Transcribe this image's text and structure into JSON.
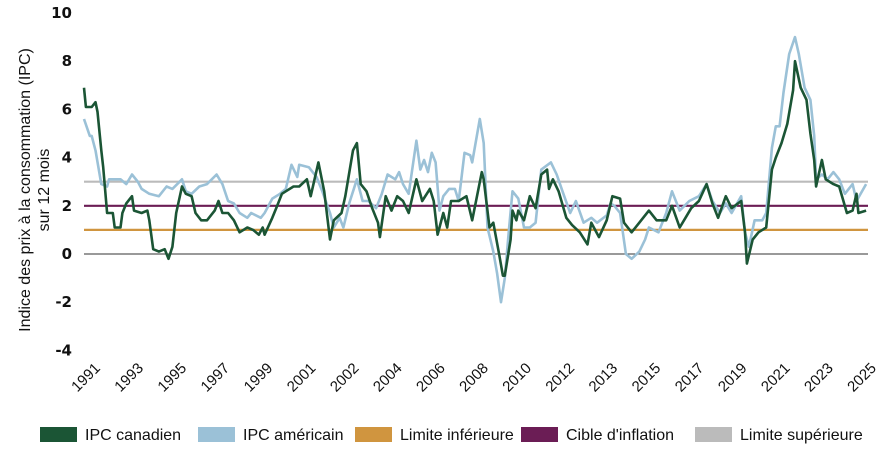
{
  "chart_data": {
    "type": "line",
    "title": "",
    "ylabel_lines": [
      "Indice des prix à la consommation (IPC)",
      "sur 12 mois"
    ],
    "xlabel": "",
    "ylim": [
      -4,
      10
    ],
    "yticks": [
      "10",
      "8",
      "6",
      "4",
      "2",
      "0",
      "-2",
      "-4"
    ],
    "ytick_values": [
      10,
      8,
      6,
      4,
      2,
      0,
      -2,
      -4
    ],
    "xlim": [
      "1991-01",
      "2025-01"
    ],
    "xtick_labels": [
      "1991",
      "1993",
      "1995",
      "1997",
      "1999",
      "2001",
      "2002",
      "2004",
      "2006",
      "2008",
      "2010",
      "2012",
      "2013",
      "2015",
      "2017",
      "2019",
      "2021",
      "2023",
      "2025"
    ],
    "grid": false,
    "legend_position": "bottom",
    "reference_lines": [
      {
        "name": "Limite inférieure",
        "value": 1,
        "color": "#d0953f"
      },
      {
        "name": "Cible d'inflation",
        "value": 2,
        "color": "#6b1d55"
      },
      {
        "name": "Limite supérieure",
        "value": 3,
        "color": "#bbbbbb"
      }
    ],
    "zero_line_color": "#333333",
    "series": [
      {
        "name": "IPC canadien",
        "color": "#1b5535",
        "points": [
          [
            "1991-01",
            6.9
          ],
          [
            "1991-02",
            6.1
          ],
          [
            "1991-05",
            6.1
          ],
          [
            "1991-07",
            6.3
          ],
          [
            "1991-08",
            5.9
          ],
          [
            "1991-10",
            4.3
          ],
          [
            "1991-11",
            3.6
          ],
          [
            "1992-01",
            1.7
          ],
          [
            "1992-04",
            1.7
          ],
          [
            "1992-05",
            1.1
          ],
          [
            "1992-08",
            1.1
          ],
          [
            "1992-09",
            1.7
          ],
          [
            "1992-11",
            2.1
          ],
          [
            "1993-02",
            2.4
          ],
          [
            "1993-03",
            1.8
          ],
          [
            "1993-07",
            1.7
          ],
          [
            "1993-10",
            1.8
          ],
          [
            "1993-11",
            1.4
          ],
          [
            "1994-01",
            0.2
          ],
          [
            "1994-04",
            0.1
          ],
          [
            "1994-07",
            0.2
          ],
          [
            "1994-09",
            -0.2
          ],
          [
            "1994-11",
            0.3
          ],
          [
            "1995-01",
            1.7
          ],
          [
            "1995-04",
            2.8
          ],
          [
            "1995-06",
            2.5
          ],
          [
            "1995-09",
            2.4
          ],
          [
            "1995-11",
            1.7
          ],
          [
            "1996-02",
            1.4
          ],
          [
            "1996-05",
            1.4
          ],
          [
            "1996-09",
            1.8
          ],
          [
            "1996-11",
            2.2
          ],
          [
            "1997-01",
            1.7
          ],
          [
            "1997-04",
            1.7
          ],
          [
            "1997-07",
            1.4
          ],
          [
            "1997-10",
            0.9
          ],
          [
            "1998-02",
            1.1
          ],
          [
            "1998-05",
            1.0
          ],
          [
            "1998-08",
            0.8
          ],
          [
            "1998-10",
            1.1
          ],
          [
            "1998-11",
            0.8
          ],
          [
            "1999-03",
            1.5
          ],
          [
            "1999-05",
            1.9
          ],
          [
            "1999-08",
            2.5
          ],
          [
            "1999-10",
            2.6
          ],
          [
            "2000-02",
            2.8
          ],
          [
            "2000-05",
            2.8
          ],
          [
            "2000-09",
            3.1
          ],
          [
            "2000-11",
            2.4
          ],
          [
            "2001-03",
            3.8
          ],
          [
            "2001-06",
            2.6
          ],
          [
            "2001-09",
            0.6
          ],
          [
            "2001-11",
            1.4
          ],
          [
            "2002-03",
            1.7
          ],
          [
            "2002-05",
            2.4
          ],
          [
            "2002-09",
            4.3
          ],
          [
            "2002-11",
            4.6
          ],
          [
            "2003-01",
            2.9
          ],
          [
            "2003-04",
            2.6
          ],
          [
            "2003-07",
            1.9
          ],
          [
            "2003-10",
            1.3
          ],
          [
            "2003-11",
            0.7
          ],
          [
            "2004-02",
            2.4
          ],
          [
            "2004-05",
            1.8
          ],
          [
            "2004-08",
            2.4
          ],
          [
            "2004-11",
            2.2
          ],
          [
            "2005-02",
            1.7
          ],
          [
            "2005-06",
            3.1
          ],
          [
            "2005-09",
            2.2
          ],
          [
            "2006-01",
            2.7
          ],
          [
            "2006-03",
            2.2
          ],
          [
            "2006-05",
            0.8
          ],
          [
            "2006-08",
            1.7
          ],
          [
            "2006-10",
            1.1
          ],
          [
            "2006-12",
            2.2
          ],
          [
            "2007-04",
            2.2
          ],
          [
            "2007-08",
            2.4
          ],
          [
            "2007-11",
            1.4
          ],
          [
            "2008-04",
            3.4
          ],
          [
            "2008-05",
            3.1
          ],
          [
            "2008-08",
            1.1
          ],
          [
            "2008-10",
            1.3
          ],
          [
            "2009-01",
            0.0
          ],
          [
            "2009-03",
            -0.9
          ],
          [
            "2009-04",
            -0.9
          ],
          [
            "2009-07",
            0.6
          ],
          [
            "2009-08",
            1.8
          ],
          [
            "2009-10",
            1.4
          ],
          [
            "2009-11",
            1.8
          ],
          [
            "2010-02",
            1.4
          ],
          [
            "2010-05",
            2.4
          ],
          [
            "2010-08",
            1.9
          ],
          [
            "2010-11",
            3.3
          ],
          [
            "2011-02",
            3.5
          ],
          [
            "2011-03",
            2.7
          ],
          [
            "2011-05",
            3.1
          ],
          [
            "2011-08",
            2.6
          ],
          [
            "2011-12",
            1.5
          ],
          [
            "2012-03",
            1.2
          ],
          [
            "2012-07",
            0.9
          ],
          [
            "2012-11",
            0.4
          ],
          [
            "2013-01",
            1.3
          ],
          [
            "2013-05",
            0.7
          ],
          [
            "2013-09",
            1.4
          ],
          [
            "2013-12",
            2.4
          ],
          [
            "2014-04",
            2.3
          ],
          [
            "2014-06",
            1.3
          ],
          [
            "2014-10",
            0.9
          ],
          [
            "2015-02",
            1.3
          ],
          [
            "2015-07",
            1.8
          ],
          [
            "2015-11",
            1.4
          ],
          [
            "2016-04",
            1.4
          ],
          [
            "2016-07",
            2.0
          ],
          [
            "2016-11",
            1.1
          ],
          [
            "2017-02",
            1.5
          ],
          [
            "2017-05",
            1.9
          ],
          [
            "2017-09",
            2.2
          ],
          [
            "2018-01",
            2.9
          ],
          [
            "2018-04",
            2.1
          ],
          [
            "2018-07",
            1.5
          ],
          [
            "2018-11",
            2.4
          ],
          [
            "2019-02",
            1.9
          ],
          [
            "2019-07",
            2.2
          ],
          [
            "2019-09",
            0.9
          ],
          [
            "2019-10",
            -0.4
          ],
          [
            "2020-01",
            0.6
          ],
          [
            "2020-04",
            0.9
          ],
          [
            "2020-08",
            1.1
          ],
          [
            "2020-11",
            3.5
          ],
          [
            "2021-01",
            4.0
          ],
          [
            "2021-04",
            4.6
          ],
          [
            "2021-07",
            5.4
          ],
          [
            "2021-10",
            6.8
          ],
          [
            "2021-11",
            8.0
          ],
          [
            "2022-02",
            6.9
          ],
          [
            "2022-05",
            6.4
          ],
          [
            "2022-07",
            5.0
          ],
          [
            "2022-09",
            3.9
          ],
          [
            "2022-10",
            2.8
          ],
          [
            "2023-01",
            3.9
          ],
          [
            "2023-03",
            3.1
          ],
          [
            "2023-07",
            2.9
          ],
          [
            "2023-10",
            2.8
          ],
          [
            "2024-02",
            1.7
          ],
          [
            "2024-05",
            1.8
          ],
          [
            "2024-07",
            2.5
          ],
          [
            "2024-08",
            1.7
          ],
          [
            "2024-12",
            1.8
          ]
        ]
      },
      {
        "name": "IPC américain",
        "color": "#9bc1d7",
        "points": [
          [
            "1991-01",
            5.6
          ],
          [
            "1991-04",
            4.9
          ],
          [
            "1991-05",
            4.9
          ],
          [
            "1991-07",
            4.3
          ],
          [
            "1991-10",
            2.9
          ],
          [
            "1992-01",
            2.8
          ],
          [
            "1992-02",
            3.1
          ],
          [
            "1992-08",
            3.1
          ],
          [
            "1992-11",
            2.9
          ],
          [
            "1993-02",
            3.3
          ],
          [
            "1993-05",
            3.0
          ],
          [
            "1993-07",
            2.7
          ],
          [
            "1993-11",
            2.5
          ],
          [
            "1994-04",
            2.4
          ],
          [
            "1994-08",
            2.8
          ],
          [
            "1994-11",
            2.7
          ],
          [
            "1995-04",
            3.1
          ],
          [
            "1995-06",
            2.6
          ],
          [
            "1995-09",
            2.5
          ],
          [
            "1996-01",
            2.8
          ],
          [
            "1996-05",
            2.9
          ],
          [
            "1996-10",
            3.3
          ],
          [
            "1997-01",
            2.9
          ],
          [
            "1997-04",
            2.2
          ],
          [
            "1997-07",
            2.1
          ],
          [
            "1997-10",
            1.7
          ],
          [
            "1998-02",
            1.5
          ],
          [
            "1998-04",
            1.7
          ],
          [
            "1998-09",
            1.5
          ],
          [
            "1998-11",
            1.7
          ],
          [
            "1999-03",
            2.3
          ],
          [
            "1999-07",
            2.5
          ],
          [
            "1999-10",
            2.7
          ],
          [
            "2000-01",
            3.7
          ],
          [
            "2000-04",
            3.2
          ],
          [
            "2000-05",
            3.7
          ],
          [
            "2000-10",
            3.6
          ],
          [
            "2001-02",
            3.2
          ],
          [
            "2001-05",
            2.6
          ],
          [
            "2001-09",
            1.7
          ],
          [
            "2001-11",
            1.1
          ],
          [
            "2002-02",
            1.5
          ],
          [
            "2002-04",
            1.1
          ],
          [
            "2002-07",
            2.1
          ],
          [
            "2002-11",
            3.1
          ],
          [
            "2003-02",
            2.2
          ],
          [
            "2003-05",
            2.2
          ],
          [
            "2003-09",
            1.9
          ],
          [
            "2003-12",
            2.5
          ],
          [
            "2004-03",
            3.3
          ],
          [
            "2004-07",
            3.1
          ],
          [
            "2004-09",
            3.4
          ],
          [
            "2004-11",
            2.9
          ],
          [
            "2005-02",
            2.5
          ],
          [
            "2005-06",
            4.7
          ],
          [
            "2005-08",
            3.5
          ],
          [
            "2005-10",
            3.9
          ],
          [
            "2005-12",
            3.4
          ],
          [
            "2006-02",
            4.2
          ],
          [
            "2006-04",
            3.8
          ],
          [
            "2006-06",
            1.8
          ],
          [
            "2006-08",
            2.4
          ],
          [
            "2006-11",
            2.7
          ],
          [
            "2007-02",
            2.7
          ],
          [
            "2007-04",
            2.2
          ],
          [
            "2007-07",
            4.2
          ],
          [
            "2007-10",
            4.1
          ],
          [
            "2007-11",
            3.8
          ],
          [
            "2008-03",
            5.6
          ],
          [
            "2008-05",
            4.6
          ],
          [
            "2008-07",
            1.1
          ],
          [
            "2008-10",
            0.1
          ],
          [
            "2008-12",
            -0.8
          ],
          [
            "2009-02",
            -2.0
          ],
          [
            "2009-04",
            -1.0
          ],
          [
            "2009-06",
            0.9
          ],
          [
            "2009-08",
            2.6
          ],
          [
            "2009-11",
            2.3
          ],
          [
            "2010-02",
            1.1
          ],
          [
            "2010-05",
            1.1
          ],
          [
            "2010-08",
            1.3
          ],
          [
            "2010-11",
            3.5
          ],
          [
            "2011-04",
            3.8
          ],
          [
            "2011-07",
            3.3
          ],
          [
            "2011-10",
            2.6
          ],
          [
            "2012-02",
            1.7
          ],
          [
            "2012-05",
            2.2
          ],
          [
            "2012-09",
            1.3
          ],
          [
            "2013-01",
            1.5
          ],
          [
            "2013-04",
            1.3
          ],
          [
            "2013-09",
            1.6
          ],
          [
            "2013-11",
            2.1
          ],
          [
            "2014-01",
            2.0
          ],
          [
            "2014-04",
            1.7
          ],
          [
            "2014-07",
            0.0
          ],
          [
            "2014-10",
            -0.2
          ],
          [
            "2015-02",
            0.1
          ],
          [
            "2015-05",
            0.6
          ],
          [
            "2015-07",
            1.1
          ],
          [
            "2015-12",
            0.9
          ],
          [
            "2016-04",
            1.7
          ],
          [
            "2016-07",
            2.6
          ],
          [
            "2016-11",
            1.8
          ],
          [
            "2017-04",
            2.2
          ],
          [
            "2017-09",
            2.4
          ],
          [
            "2018-01",
            2.9
          ],
          [
            "2018-04",
            2.2
          ],
          [
            "2018-08",
            1.7
          ],
          [
            "2018-11",
            2.1
          ],
          [
            "2019-02",
            1.7
          ],
          [
            "2019-07",
            2.4
          ],
          [
            "2019-09",
            0.9
          ],
          [
            "2019-11",
            0.3
          ],
          [
            "2020-02",
            1.4
          ],
          [
            "2020-06",
            1.4
          ],
          [
            "2020-08",
            1.7
          ],
          [
            "2020-11",
            4.4
          ],
          [
            "2021-01",
            5.3
          ],
          [
            "2021-03",
            5.3
          ],
          [
            "2021-05",
            6.7
          ],
          [
            "2021-08",
            8.3
          ],
          [
            "2021-11",
            9.0
          ],
          [
            "2022-01",
            8.3
          ],
          [
            "2022-04",
            6.9
          ],
          [
            "2022-07",
            6.4
          ],
          [
            "2022-09",
            4.9
          ],
          [
            "2022-10",
            3.1
          ],
          [
            "2023-01",
            3.3
          ],
          [
            "2023-04",
            3.1
          ],
          [
            "2023-07",
            3.4
          ],
          [
            "2023-10",
            3.1
          ],
          [
            "2024-01",
            2.5
          ],
          [
            "2024-05",
            2.9
          ],
          [
            "2024-07",
            2.2
          ],
          [
            "2024-12",
            2.9
          ]
        ]
      }
    ],
    "legend": [
      {
        "label": "IPC canadien",
        "color": "#1b5535"
      },
      {
        "label": "IPC américain",
        "color": "#9bc1d7"
      },
      {
        "label": "Limite inférieure",
        "color": "#d0953f"
      },
      {
        "label": "Cible d'inflation",
        "color": "#6b1d55"
      },
      {
        "label": "Limite supérieure",
        "color": "#bbbbbb"
      }
    ]
  }
}
